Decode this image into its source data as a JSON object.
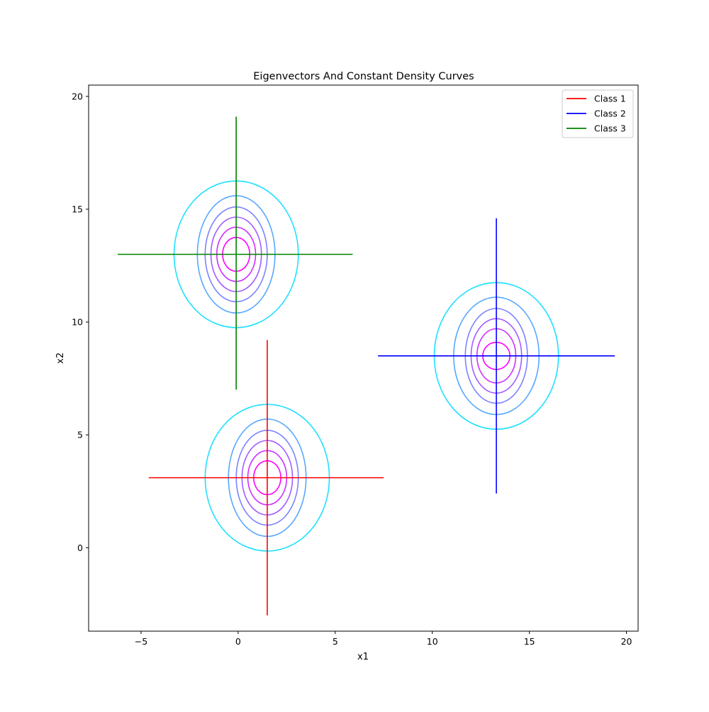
{
  "chart_data": {
    "type": "line",
    "title": "Eigenvectors And Constant Density Curves",
    "xlabel": "x1",
    "ylabel": "x2",
    "xlim": [
      -7.7,
      20.6
    ],
    "ylim": [
      -3.7,
      20.5
    ],
    "xticks": [
      -5,
      0,
      5,
      10,
      15,
      20
    ],
    "xtick_labels": [
      "−5",
      "0",
      "5",
      "10",
      "15",
      "20"
    ],
    "yticks": [
      0,
      5,
      10,
      15,
      20
    ],
    "ytick_labels": [
      "0",
      "5",
      "10",
      "15",
      "20"
    ],
    "grid": false,
    "legend": {
      "placement": "top-right",
      "entries": [
        "Class 1",
        "Class 2",
        "Class 3"
      ]
    },
    "contour_colors": [
      "#ff00ff",
      "#cf30ff",
      "#a35cff",
      "#7c83ff",
      "#57a8ff",
      "#1fe0ff"
    ],
    "series": [
      {
        "name": "Class 1",
        "color": "#ff0000",
        "center": [
          1.5,
          3.1
        ],
        "eigenvectors": [
          {
            "from": [
              -4.6,
              3.1
            ],
            "to": [
              7.5,
              3.1
            ]
          },
          {
            "from": [
              1.5,
              -3.0
            ],
            "to": [
              1.5,
              9.2
            ]
          }
        ],
        "contours": [
          {
            "rx": 0.7,
            "ry": 0.75
          },
          {
            "rx": 1.0,
            "ry": 1.2
          },
          {
            "rx": 1.3,
            "ry": 1.65
          },
          {
            "rx": 1.6,
            "ry": 2.1
          },
          {
            "rx": 2.0,
            "ry": 2.6
          },
          {
            "rx": 3.2,
            "ry": 3.25
          }
        ]
      },
      {
        "name": "Class 2",
        "color": "#0000ff",
        "center": [
          13.3,
          8.5
        ],
        "eigenvectors": [
          {
            "from": [
              7.2,
              8.5
            ],
            "to": [
              19.4,
              8.5
            ]
          },
          {
            "from": [
              13.3,
              2.4
            ],
            "to": [
              13.3,
              14.6
            ]
          }
        ],
        "contours": [
          {
            "rx": 0.7,
            "ry": 0.6
          },
          {
            "rx": 1.0,
            "ry": 1.2
          },
          {
            "rx": 1.3,
            "ry": 1.65
          },
          {
            "rx": 1.6,
            "ry": 2.1
          },
          {
            "rx": 2.2,
            "ry": 2.6
          },
          {
            "rx": 3.2,
            "ry": 3.25
          }
        ]
      },
      {
        "name": "Class 3",
        "color": "#008000",
        "center": [
          -0.1,
          13.0
        ],
        "eigenvectors": [
          {
            "from": [
              -6.2,
              13.0
            ],
            "to": [
              5.9,
              13.0
            ]
          },
          {
            "from": [
              -0.1,
              7.0
            ],
            "to": [
              -0.1,
              19.1
            ]
          }
        ],
        "contours": [
          {
            "rx": 0.7,
            "ry": 0.75
          },
          {
            "rx": 1.0,
            "ry": 1.2
          },
          {
            "rx": 1.3,
            "ry": 1.65
          },
          {
            "rx": 1.6,
            "ry": 2.1
          },
          {
            "rx": 2.0,
            "ry": 2.6
          },
          {
            "rx": 3.2,
            "ry": 3.25
          }
        ]
      }
    ]
  }
}
